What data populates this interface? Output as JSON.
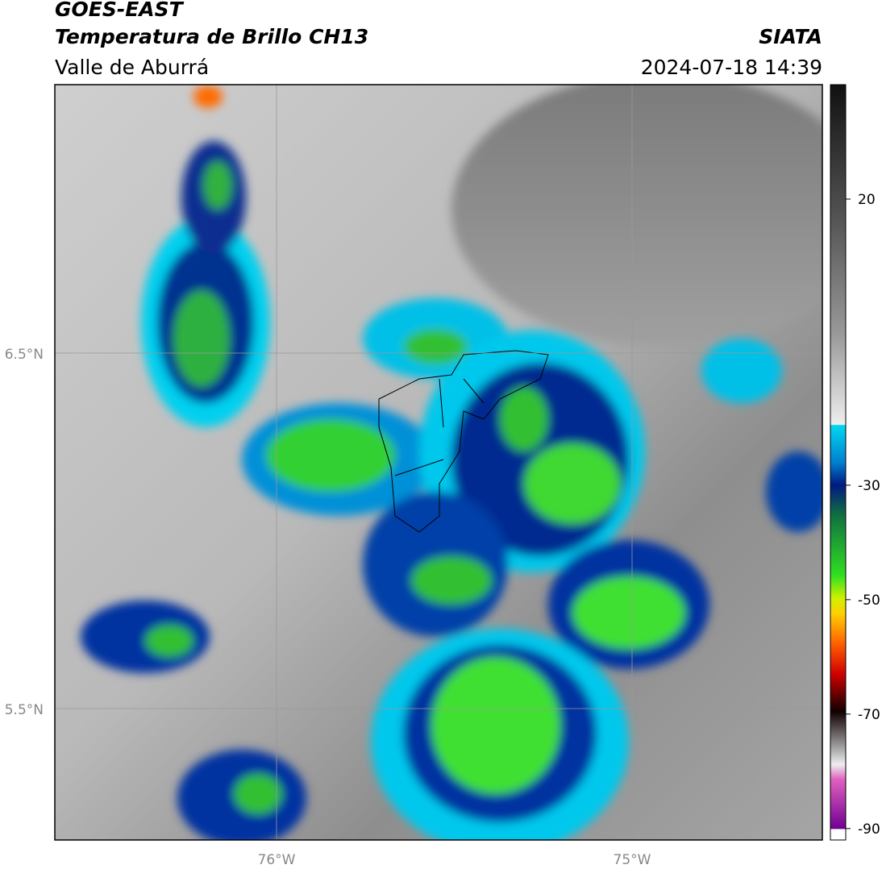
{
  "header": {
    "title": "GOES-EAST",
    "subtitle": "Temperatura de Brillo CH13",
    "region": "Valle de Aburrá",
    "source": "SIATA",
    "datetime": "2024-07-18 14:39"
  },
  "map": {
    "lat_labels": [
      "6.5°N",
      "5.5°N"
    ],
    "lon_labels": [
      "76°W",
      "75°W"
    ]
  },
  "colorbar": {
    "lim": [
      -92,
      40
    ],
    "ticks": [
      20,
      -30,
      -50,
      -70,
      -90
    ]
  }
}
